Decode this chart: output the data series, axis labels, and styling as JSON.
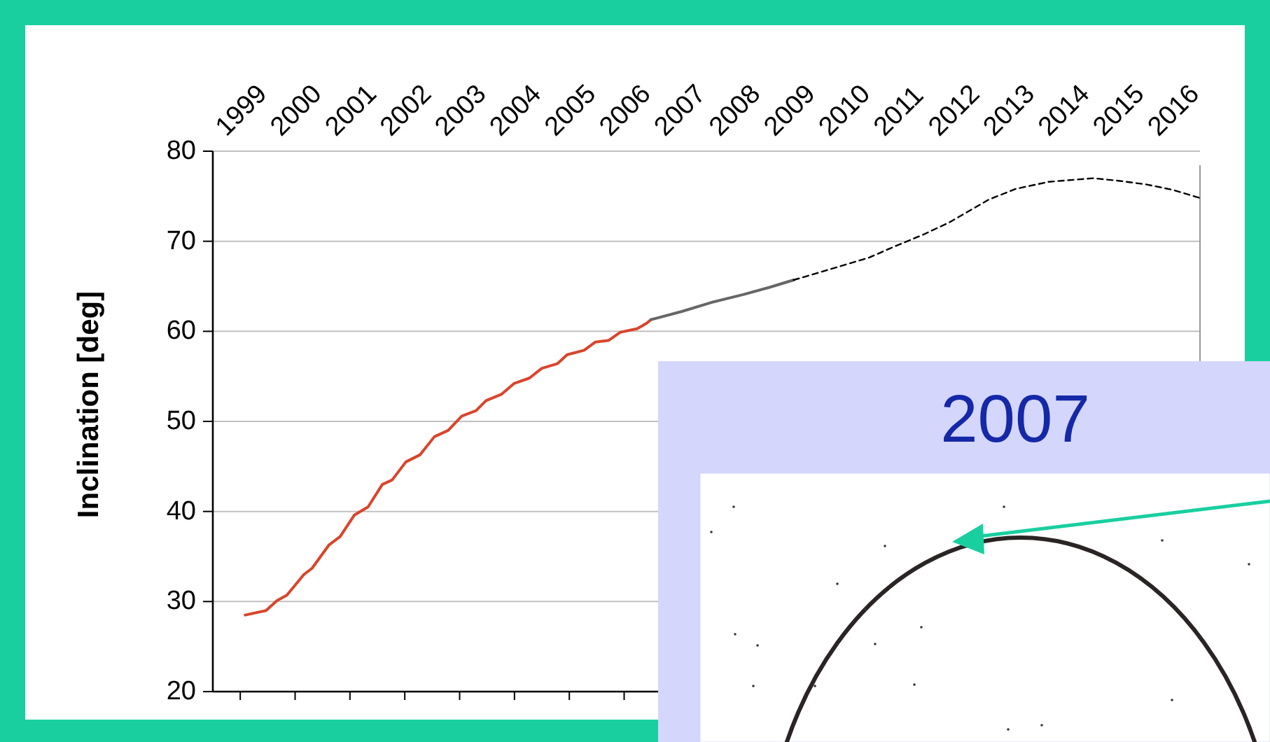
{
  "chart_data": {
    "type": "line",
    "ylabel": "Inclination [deg]",
    "annotations": [
      "2007"
    ],
    "grid": "y",
    "xlim": [
      1999,
      2017
    ],
    "xticks": [
      {
        "value": 1999.5,
        "label": "1999"
      },
      {
        "value": 2000.5,
        "label": "2000"
      },
      {
        "value": 2001.5,
        "label": "2001"
      },
      {
        "value": 2002.5,
        "label": "2002"
      },
      {
        "value": 2003.5,
        "label": "2003"
      },
      {
        "value": 2004.5,
        "label": "2004"
      },
      {
        "value": 2005.5,
        "label": "2005"
      },
      {
        "value": 2006.5,
        "label": "2006"
      },
      {
        "value": 2007.5,
        "label": "2007"
      },
      {
        "value": 2008.5,
        "label": "2008"
      },
      {
        "value": 2009.5,
        "label": "2009"
      },
      {
        "value": 2010.5,
        "label": "2010"
      },
      {
        "value": 2011.5,
        "label": "2011"
      },
      {
        "value": 2012.5,
        "label": "2012"
      },
      {
        "value": 2013.5,
        "label": "2013"
      },
      {
        "value": 2014.5,
        "label": "2014"
      },
      {
        "value": 2015.5,
        "label": "2015"
      },
      {
        "value": 2016.5,
        "label": "2016"
      }
    ],
    "ylim": [
      20,
      80
    ],
    "yticks": [
      20,
      30,
      40,
      50,
      60,
      70,
      80
    ],
    "series": [
      {
        "color": "#d9452b",
        "line_style": "solid",
        "x": [
          1999.59,
          1999.97,
          2000.17,
          2000.35,
          2000.66,
          2000.81,
          2001.12,
          2001.32,
          2001.58,
          2001.83,
          2002.09,
          2002.27,
          2002.52,
          2002.78,
          2003.04,
          2003.29,
          2003.54,
          2003.8,
          2003.98,
          2004.26,
          2004.49,
          2004.77,
          2005.0,
          2005.28,
          2005.46,
          2005.77,
          2005.97,
          2006.22,
          2006.43,
          2006.74,
          2006.91,
          2006.99
        ],
        "values": [
          28.5,
          29.0,
          30.1,
          30.7,
          33.0,
          33.7,
          36.3,
          37.2,
          39.6,
          40.5,
          43.0,
          43.5,
          45.5,
          46.3,
          48.3,
          49.0,
          50.6,
          51.2,
          52.3,
          53.0,
          54.2,
          54.8,
          55.9,
          56.4,
          57.4,
          57.9,
          58.8,
          59.0,
          59.9,
          60.3,
          60.9,
          61.3
        ]
      },
      {
        "color": "#666666",
        "line_style": "solid",
        "x": [
          2006.99,
          2007.55,
          2008.09,
          2008.68,
          2009.16,
          2009.59
        ],
        "values": [
          61.3,
          62.2,
          63.2,
          64.1,
          64.9,
          65.7
        ]
      },
      {
        "color": "#000000",
        "line_style": "dashed",
        "x": [
          2009.59,
          2010.26,
          2010.97,
          2011.46,
          2011.94,
          2012.43,
          2013.14,
          2013.63,
          2014.24,
          2015.06,
          2015.54,
          2016.03,
          2016.51,
          2017.0
        ],
        "values": [
          65.7,
          66.9,
          68.2,
          69.5,
          70.7,
          72.1,
          74.6,
          75.8,
          76.6,
          77.0,
          76.7,
          76.3,
          75.7,
          74.8
        ]
      }
    ]
  }
}
